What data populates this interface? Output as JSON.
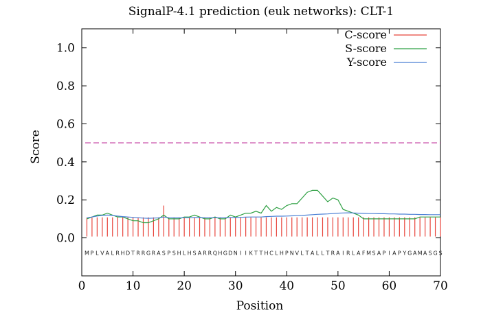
{
  "chart_data": {
    "type": "line",
    "title": "SignalP-4.1 prediction (euk networks): CLT-1",
    "xlabel": "Position",
    "ylabel": "Score",
    "xlim": [
      0,
      70
    ],
    "ylim": [
      -0.2,
      1.1
    ],
    "xticks": [
      0,
      10,
      20,
      30,
      40,
      50,
      60,
      70
    ],
    "yticks": [
      0.0,
      0.2,
      0.4,
      0.6,
      0.8,
      1.0
    ],
    "ytick_labels": [
      "0.0",
      "0.2",
      "0.4",
      "0.6",
      "0.8",
      "1.0"
    ],
    "threshold": 0.5,
    "sequence": "MPLVALRHDTRRGRASPSHLHSARRQHGDNIIKTTHCLHPNVLTALLTRAIRLAFMSAPIAPYGAMASGS",
    "legend": {
      "position": "top-right"
    },
    "series": [
      {
        "name": "C-score",
        "color": "#e8433a",
        "style": "impulse",
        "values": [
          0.107,
          0.107,
          0.108,
          0.108,
          0.108,
          0.108,
          0.108,
          0.108,
          0.108,
          0.108,
          0.108,
          0.108,
          0.108,
          0.108,
          0.108,
          0.17,
          0.108,
          0.108,
          0.108,
          0.108,
          0.108,
          0.108,
          0.108,
          0.108,
          0.108,
          0.108,
          0.108,
          0.108,
          0.108,
          0.108,
          0.108,
          0.108,
          0.108,
          0.108,
          0.108,
          0.108,
          0.108,
          0.108,
          0.108,
          0.108,
          0.108,
          0.108,
          0.108,
          0.108,
          0.108,
          0.108,
          0.108,
          0.108,
          0.108,
          0.108,
          0.108,
          0.108,
          0.108,
          0.108,
          0.108,
          0.108,
          0.108,
          0.108,
          0.108,
          0.108,
          0.108,
          0.108,
          0.108,
          0.108,
          0.108,
          0.108,
          0.108,
          0.108,
          0.108,
          0.108
        ]
      },
      {
        "name": "S-score",
        "color": "#2ea043",
        "style": "line",
        "values": [
          0.1,
          0.11,
          0.12,
          0.12,
          0.13,
          0.12,
          0.11,
          0.11,
          0.1,
          0.09,
          0.09,
          0.08,
          0.08,
          0.09,
          0.1,
          0.12,
          0.1,
          0.1,
          0.1,
          0.11,
          0.11,
          0.12,
          0.11,
          0.1,
          0.1,
          0.11,
          0.1,
          0.1,
          0.12,
          0.11,
          0.12,
          0.13,
          0.13,
          0.14,
          0.13,
          0.17,
          0.14,
          0.16,
          0.15,
          0.17,
          0.18,
          0.18,
          0.21,
          0.24,
          0.25,
          0.25,
          0.22,
          0.19,
          0.21,
          0.2,
          0.15,
          0.14,
          0.13,
          0.12,
          0.1,
          0.1,
          0.1,
          0.1,
          0.1,
          0.1,
          0.1,
          0.1,
          0.1,
          0.1,
          0.1,
          0.11,
          0.11,
          0.11,
          0.11,
          0.11
        ]
      },
      {
        "name": "Y-score",
        "color": "#4a7fd4",
        "style": "line",
        "values": [
          0.105,
          0.11,
          0.115,
          0.118,
          0.12,
          0.118,
          0.115,
          0.112,
          0.11,
          0.108,
          0.106,
          0.104,
          0.103,
          0.104,
          0.105,
          0.11,
          0.106,
          0.105,
          0.105,
          0.106,
          0.106,
          0.107,
          0.107,
          0.106,
          0.106,
          0.106,
          0.106,
          0.106,
          0.107,
          0.107,
          0.108,
          0.109,
          0.11,
          0.11,
          0.11,
          0.112,
          0.113,
          0.114,
          0.114,
          0.115,
          0.116,
          0.117,
          0.118,
          0.12,
          0.122,
          0.124,
          0.125,
          0.126,
          0.128,
          0.13,
          0.131,
          0.132,
          0.131,
          0.13,
          0.129,
          0.128,
          0.128,
          0.127,
          0.127,
          0.126,
          0.126,
          0.125,
          0.125,
          0.124,
          0.124,
          0.123,
          0.123,
          0.122,
          0.122,
          0.122
        ]
      }
    ]
  }
}
